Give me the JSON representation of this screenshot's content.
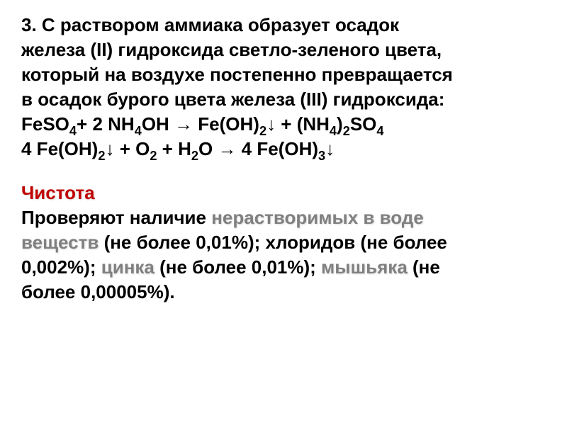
{
  "section1": {
    "line1": "3. С раствором аммиака образует осадок",
    "line2": "железа (II) гидроксида светло-зеленого цвета,",
    "line3": "который на воздухе постепенно превращается",
    "line4": "в осадок бурого цвета железа (III) гидроксида:",
    "formula1_parts": {
      "p1": "FeSO",
      "sub1": "4",
      "p2": "+ 2 NH",
      "sub2": "4",
      "p3": "OH → Fe(OH)",
      "sub3": "2",
      "p4": "↓ + (NH",
      "sub4": "4",
      "p5": ")",
      "sub5": "2",
      "p6": "SO",
      "sub6": "4"
    },
    "formula2_parts": {
      "p1": "4 Fe(OH)",
      "sub1": "2",
      "p2": "↓ + O",
      "sub2": "2",
      "p3": " + H",
      "sub3": "2",
      "p4": "O → 4 Fe(OH)",
      "sub4": "3",
      "p5": "↓"
    }
  },
  "section2": {
    "heading": "Чистота",
    "line1_parts": {
      "p1": "Проверяют наличие ",
      "em1": "нерастворимых в воде"
    },
    "line2_parts": {
      "em1": "веществ",
      "p1": " (не более 0,01%); хлоридов (не более"
    },
    "line3_parts": {
      "p1": "0,002%); ",
      "em1": "цинка",
      "p2": " (не более 0,01%); ",
      "em2": "мышьяка",
      "p3": " (не"
    },
    "line4": "более 0,00005%)."
  },
  "colors": {
    "text": "#000000",
    "heading": "#c00000",
    "emphasis": "#808080",
    "background": "#ffffff"
  },
  "fonts": {
    "body_size": 26,
    "weight": "bold",
    "family": "Arial"
  }
}
